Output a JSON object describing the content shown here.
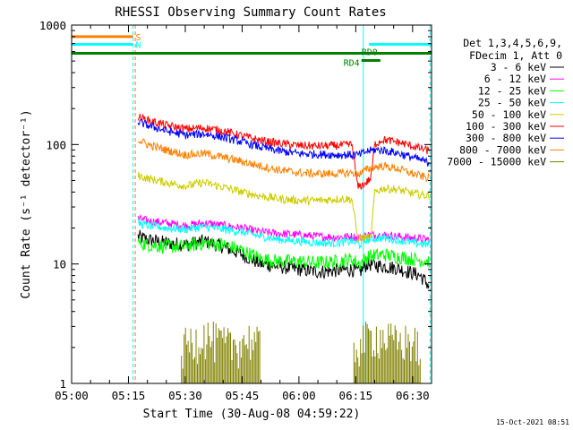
{
  "chart_data": {
    "type": "line",
    "title": "RHESSI Observing Summary Count Rates",
    "xlabel": "Start Time (30-Aug-08 04:59:22)",
    "ylabel": "Count Rate (s⁻¹ detector⁻¹)",
    "yscale": "log",
    "ylim": [
      1,
      1000
    ],
    "xlim_min": [
      0,
      95
    ],
    "x_ticks": [
      {
        "t": 0,
        "label": "05:00"
      },
      {
        "t": 15,
        "label": "05:15"
      },
      {
        "t": 30,
        "label": "05:30"
      },
      {
        "t": 45,
        "label": "05:45"
      },
      {
        "t": 60,
        "label": "06:00"
      },
      {
        "t": 75,
        "label": "06:15"
      },
      {
        "t": 90,
        "label": "06:30"
      }
    ],
    "y_ticks": [
      {
        "v": 1,
        "label": "1"
      },
      {
        "v": 10,
        "label": "10"
      },
      {
        "v": 100,
        "label": "100"
      },
      {
        "v": 1000,
        "label": "1000"
      }
    ],
    "legend_header": [
      "Det 1,3,4,5,6,9,",
      "FDecim 1, Att 0"
    ],
    "series": [
      {
        "name": "3 - 6 keV",
        "color": "#000000",
        "x": [
          17.5,
          20,
          25,
          30,
          35,
          40,
          45,
          50,
          55,
          60,
          65,
          70,
          74,
          76,
          78,
          82,
          86,
          90,
          92,
          94.5
        ],
        "values": [
          17,
          16,
          15,
          14.5,
          15.5,
          14,
          12,
          10,
          9.5,
          9,
          8.6,
          8.8,
          9,
          8.5,
          10,
          9.6,
          9.2,
          8.4,
          8,
          6.5
        ]
      },
      {
        "name": "6 - 12 keV",
        "color": "#ff00ff",
        "x": [
          17.5,
          20,
          25,
          30,
          35,
          40,
          45,
          50,
          55,
          60,
          65,
          70,
          74,
          76,
          78,
          82,
          86,
          90,
          94.5
        ],
        "values": [
          24,
          23,
          22,
          21,
          22,
          21,
          20,
          18.5,
          18,
          17.5,
          17,
          16.8,
          17,
          16.5,
          17.5,
          17.5,
          17,
          16.5,
          16
        ]
      },
      {
        "name": "12 - 25 keV",
        "color": "#00ff00",
        "x": [
          17.5,
          20,
          25,
          30,
          35,
          40,
          45,
          50,
          55,
          60,
          65,
          70,
          74,
          76,
          78,
          82,
          86,
          90,
          94.5
        ],
        "values": [
          15,
          14.5,
          14,
          14,
          15,
          14.5,
          13,
          11,
          10.5,
          10.5,
          10.2,
          10.5,
          11,
          10,
          11.5,
          12,
          11.5,
          11,
          10.5
        ]
      },
      {
        "name": "25 - 50 keV",
        "color": "#00ffff",
        "x": [
          17.5,
          20,
          25,
          30,
          35,
          40,
          45,
          50,
          55,
          60,
          65,
          70,
          74,
          76,
          78,
          82,
          86,
          90,
          94.5
        ],
        "values": [
          22,
          21,
          20,
          19.5,
          20.5,
          19.5,
          18.5,
          17,
          16,
          15.5,
          15,
          15,
          15.5,
          14.5,
          16,
          16.5,
          16,
          15,
          14.5
        ]
      },
      {
        "name": "50 - 100 keV",
        "color": "#cccc00",
        "x": [
          17.5,
          20,
          25,
          30,
          35,
          40,
          45,
          50,
          55,
          60,
          65,
          70,
          74,
          75.5,
          77,
          79,
          80,
          82,
          86,
          90,
          94.5
        ],
        "values": [
          55,
          52,
          48,
          45,
          48,
          44,
          40,
          37,
          35,
          34,
          34,
          35,
          35,
          16.5,
          16.5,
          16.5,
          40,
          43,
          42,
          39,
          37
        ]
      },
      {
        "name": "100 - 300 keV",
        "color": "#ff0000",
        "x": [
          17.5,
          20,
          25,
          30,
          35,
          40,
          45,
          50,
          55,
          60,
          65,
          70,
          74,
          75.5,
          77,
          79,
          80,
          82,
          86,
          90,
          94.5
        ],
        "values": [
          170,
          160,
          145,
          135,
          138,
          130,
          118,
          108,
          102,
          98,
          97,
          98,
          100,
          44,
          46,
          52,
          100,
          110,
          105,
          97,
          88
        ]
      },
      {
        "name": "300 - 800 keV",
        "color": "#0000ff",
        "x": [
          17.5,
          20,
          25,
          30,
          35,
          40,
          45,
          50,
          55,
          60,
          65,
          70,
          74,
          76,
          78,
          80,
          82,
          86,
          90,
          94.5
        ],
        "values": [
          155,
          145,
          130,
          120,
          123,
          115,
          105,
          95,
          88,
          84,
          83,
          82,
          82,
          82,
          88,
          90,
          90,
          85,
          78,
          70
        ]
      },
      {
        "name": "800 - 7000 keV",
        "color": "#ff8000",
        "x": [
          17.5,
          20,
          25,
          30,
          35,
          40,
          45,
          50,
          55,
          60,
          65,
          70,
          74,
          76,
          78,
          80,
          82,
          86,
          90,
          94.5
        ],
        "values": [
          110,
          100,
          90,
          82,
          84,
          78,
          72,
          66,
          61,
          58,
          57,
          57,
          58,
          57,
          62,
          65,
          66,
          63,
          57,
          52
        ]
      },
      {
        "name": "7000 - 15000 keV",
        "color": "#808000",
        "x": [
          29,
          32,
          35,
          38,
          41,
          44,
          47,
          50,
          74.5,
          77,
          80,
          83,
          86,
          89,
          92
        ],
        "values": [
          2,
          2.3,
          2.6,
          2.3,
          2.1,
          2.2,
          2.4,
          2,
          2,
          2.3,
          2.6,
          2.4,
          2.2,
          2.3,
          2
        ]
      }
    ],
    "state_bars": [
      {
        "label": "S",
        "color": "#ff8000",
        "x0": 0,
        "x1": 16.2,
        "level": 800
      },
      {
        "label": "N",
        "color": "#00ffff",
        "x0": 0,
        "x1": 16.2,
        "level": 690
      },
      {
        "label": "",
        "color": "#00ffff",
        "x0": 78.5,
        "x1": 95,
        "level": 690
      },
      {
        "label": "",
        "color": "#008000",
        "x0": 0,
        "x1": 95,
        "level": 580
      },
      {
        "label": "RD4",
        "color": "#008000",
        "x0": 76.5,
        "x1": 81.5,
        "level": 505
      },
      {
        "label": "RD0",
        "color": "#008000",
        "x0": 76.5,
        "x1": 76.5,
        "level": 600
      }
    ],
    "vlines": [
      {
        "t": 16.2,
        "color": "#00ffff",
        "style": "dashed"
      },
      {
        "t": 16.8,
        "color": "#ff8000",
        "style": "dashed"
      },
      {
        "t": 77,
        "color": "#00ffff",
        "style": "solid"
      },
      {
        "t": 94.6,
        "color": "#00ffff",
        "style": "dashed"
      }
    ]
  },
  "timestamp": "15-Oct-2021 08:51"
}
